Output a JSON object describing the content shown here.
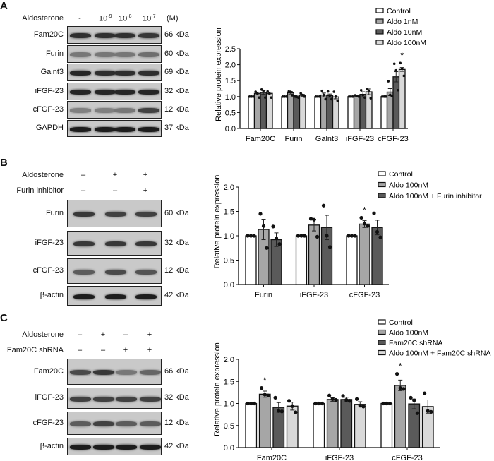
{
  "panels": [
    {
      "label": "A",
      "treatments": [
        {
          "name": "Aldosterone",
          "values": [
            "-",
            "10-9",
            "10-8",
            "10-7"
          ],
          "unit": "(M)"
        }
      ],
      "blots": [
        {
          "protein": "Fam20C",
          "kda": "66 kDa",
          "band_intensity": [
            0.85,
            0.85,
            0.85,
            0.8
          ]
        },
        {
          "protein": "Furin",
          "kda": "60 kDa",
          "band_intensity": [
            0.45,
            0.45,
            0.45,
            0.5
          ]
        },
        {
          "protein": "Galnt3",
          "kda": "69 kDa",
          "band_intensity": [
            0.9,
            0.85,
            0.85,
            0.85
          ]
        },
        {
          "protein": "iFGF-23",
          "kda": "32 kDa",
          "band_intensity": [
            0.9,
            0.9,
            0.9,
            0.9
          ]
        },
        {
          "protein": "cFGF-23",
          "kda": "12 kDa",
          "band_intensity": [
            0.4,
            0.4,
            0.45,
            0.75
          ]
        },
        {
          "protein": "GAPDH",
          "kda": "37 kDa",
          "band_intensity": [
            0.95,
            0.95,
            0.95,
            0.95
          ]
        }
      ]
    },
    {
      "label": "B",
      "treatments": [
        {
          "name": "Aldosterone",
          "values": [
            "–",
            "+",
            "+"
          ]
        },
        {
          "name": "Furin inhibitor",
          "values": [
            "–",
            "–",
            "+"
          ]
        }
      ],
      "blots": [
        {
          "protein": "Furin",
          "kda": "60 kDa",
          "band_intensity": [
            0.8,
            0.75,
            0.75
          ]
        },
        {
          "protein": "iFGF-23",
          "kda": "32 kDa",
          "band_intensity": [
            0.8,
            0.8,
            0.8
          ]
        },
        {
          "protein": "cFGF-23",
          "kda": "12 kDa",
          "band_intensity": [
            0.6,
            0.7,
            0.65
          ]
        },
        {
          "protein": "β-actin",
          "kda": "42 kDa",
          "band_intensity": [
            0.95,
            0.95,
            0.95
          ]
        }
      ]
    },
    {
      "label": "C",
      "treatments": [
        {
          "name": "Aldosterone",
          "values": [
            "–",
            "+",
            "–",
            "+"
          ]
        },
        {
          "name": "Fam20C shRNA",
          "values": [
            "–",
            "–",
            "+",
            "+"
          ]
        }
      ],
      "blots": [
        {
          "protein": "Fam20C",
          "kda": "66 kDa",
          "band_intensity": [
            0.7,
            0.8,
            0.45,
            0.55
          ]
        },
        {
          "protein": "iFGF-23",
          "kda": "32 kDa",
          "band_intensity": [
            0.75,
            0.75,
            0.75,
            0.75
          ]
        },
        {
          "protein": "cFGF-23",
          "kda": "12 kDa",
          "band_intensity": [
            0.6,
            0.75,
            0.6,
            0.6
          ]
        },
        {
          "protein": "β-actin",
          "kda": "42 kDa",
          "band_intensity": [
            0.95,
            0.95,
            0.95,
            0.95
          ]
        }
      ]
    }
  ],
  "chart_data": [
    {
      "type": "bar",
      "ylabel": "Relative protein expression",
      "ylim": [
        0,
        2.5
      ],
      "yticks": [
        "0.0",
        "0.5",
        "1.0",
        "1.5",
        "2.0",
        "2.5"
      ],
      "categories": [
        "Fam20C",
        "Furin",
        "Galnt3",
        "iFGF-23",
        "cFGF-23"
      ],
      "legend_position": "top-right",
      "series": [
        {
          "name": "Control",
          "color": "#ffffff",
          "values": [
            1,
            1,
            1,
            1,
            1
          ],
          "errors": [
            0,
            0,
            0,
            0,
            0
          ],
          "points": [
            [
              1,
              1,
              1
            ],
            [
              1,
              1,
              1
            ],
            [
              1,
              1,
              1
            ],
            [
              1,
              1,
              1
            ],
            [
              1,
              1,
              1
            ]
          ]
        },
        {
          "name": "Aldo 1nM",
          "color": "#a6a6a6",
          "values": [
            1.1,
            1.12,
            1.05,
            1.02,
            1.14
          ],
          "errors": [
            0.04,
            0.04,
            0.06,
            0.03,
            0.11
          ],
          "points": [
            [
              1.15,
              1.1,
              0.97
            ],
            [
              1.16,
              1.15,
              1.04
            ],
            [
              1.18,
              1.05,
              0.92
            ],
            [
              1.04,
              1.02,
              1.0
            ],
            [
              1.48,
              1.05,
              1.02
            ]
          ]
        },
        {
          "name": "Aldo 10nM",
          "color": "#5a5a5a",
          "values": [
            1.13,
            1.0,
            1.03,
            1.07,
            1.62
          ],
          "errors": [
            0.06,
            0.04,
            0.05,
            0.08,
            0.16
          ],
          "points": [
            [
              1.22,
              1.18,
              0.97
            ],
            [
              1.02,
              0.99,
              0.97
            ],
            [
              1.16,
              1.03,
              0.92
            ],
            [
              1.2,
              1.05,
              0.97
            ],
            [
              2.03,
              1.82,
              1.2
            ]
          ]
        },
        {
          "name": "Aldo 100nM",
          "color": "#d9d9d9",
          "values": [
            1.1,
            1.04,
            0.99,
            1.15,
            1.85
          ],
          "errors": [
            0.04,
            0.03,
            0.06,
            0.09,
            0.06
          ],
          "points": [
            [
              1.16,
              1.1,
              0.97
            ],
            [
              1.1,
              1.05,
              1.0
            ],
            [
              1.15,
              1.0,
              0.87
            ],
            [
              1.23,
              1.18,
              0.95
            ],
            [
              2.05,
              1.88,
              1.65
            ]
          ]
        }
      ],
      "significance": [
        {
          "category": "cFGF-23",
          "series": "Aldo 100nM",
          "mark": "*"
        }
      ]
    },
    {
      "type": "bar",
      "ylabel": "Relative protein expression",
      "ylim": [
        0,
        2.0
      ],
      "yticks": [
        "0.0",
        "0.5",
        "1.0",
        "1.5",
        "2.0"
      ],
      "categories": [
        "Furin",
        "iFGF-23",
        "cFGF-23"
      ],
      "legend_position": "top-right",
      "series": [
        {
          "name": "Control",
          "color": "#ffffff",
          "values": [
            1,
            1,
            1
          ],
          "errors": [
            0,
            0,
            0
          ],
          "points": [
            [
              1,
              1,
              1
            ],
            [
              1,
              1,
              1
            ],
            [
              1,
              1,
              1
            ]
          ]
        },
        {
          "name": "Aldo 100nM",
          "color": "#a6a6a6",
          "values": [
            1.13,
            1.22,
            1.24
          ],
          "errors": [
            0.21,
            0.12,
            0.07
          ],
          "points": [
            [
              1.45,
              1.2,
              0.75
            ],
            [
              1.35,
              1.33,
              0.98
            ],
            [
              1.37,
              1.25,
              1.2
            ]
          ]
        },
        {
          "name": "Aldo 100nM + Furin inhibitor",
          "color": "#5a5a5a",
          "values": [
            0.92,
            1.17,
            1.17
          ],
          "errors": [
            0.14,
            0.25,
            0.15
          ],
          "points": [
            [
              1.19,
              0.95,
              0.83
            ],
            [
              1.62,
              1.0,
              0.77
            ],
            [
              1.46,
              1.08,
              0.97
            ]
          ]
        }
      ],
      "significance": [
        {
          "category": "cFGF-23",
          "series": "Aldo 100nM",
          "mark": "*"
        }
      ]
    },
    {
      "type": "bar",
      "ylabel": "Relative protein expression",
      "ylim": [
        0,
        2.0
      ],
      "yticks": [
        "0.0",
        "0.5",
        "1.0",
        "1.5",
        "2.0"
      ],
      "categories": [
        "Fam20C",
        "iFGF-23",
        "cFGF-23"
      ],
      "legend_position": "top-right",
      "series": [
        {
          "name": "Control",
          "color": "#ffffff",
          "values": [
            1,
            1,
            1
          ],
          "errors": [
            0,
            0,
            0
          ],
          "points": [
            [
              1,
              1,
              1
            ],
            [
              1,
              1,
              1
            ],
            [
              1,
              1,
              1
            ]
          ]
        },
        {
          "name": "Aldo 100nM",
          "color": "#a6a6a6",
          "values": [
            1.21,
            1.09,
            1.41
          ],
          "errors": [
            0.07,
            0.04,
            0.12
          ],
          "points": [
            [
              1.35,
              1.2,
              1.18
            ],
            [
              1.18,
              1.1,
              1.08
            ],
            [
              1.67,
              1.35,
              1.33
            ]
          ]
        },
        {
          "name": "Fam20C shRNA",
          "color": "#5a5a5a",
          "values": [
            0.91,
            1.09,
            0.99
          ],
          "errors": [
            0.11,
            0.05,
            0.11
          ],
          "points": [
            [
              1.13,
              0.83,
              0.82
            ],
            [
              1.17,
              1.08,
              1.06
            ],
            [
              1.13,
              1.07,
              0.78
            ]
          ]
        },
        {
          "name": "Aldo 100nM + Fam20C shRNA",
          "color": "#d9d9d9",
          "values": [
            0.94,
            0.98,
            0.93
          ],
          "errors": [
            0.09,
            0.06,
            0.15
          ],
          "points": [
            [
              1.06,
              0.94,
              0.8
            ],
            [
              1.1,
              0.95,
              0.93
            ],
            [
              1.23,
              0.83,
              0.81
            ]
          ]
        }
      ],
      "significance": [
        {
          "category": "Fam20C",
          "series": "Aldo 100nM",
          "mark": "*"
        },
        {
          "category": "cFGF-23",
          "series": "Aldo 100nM",
          "mark": "*"
        }
      ]
    }
  ]
}
